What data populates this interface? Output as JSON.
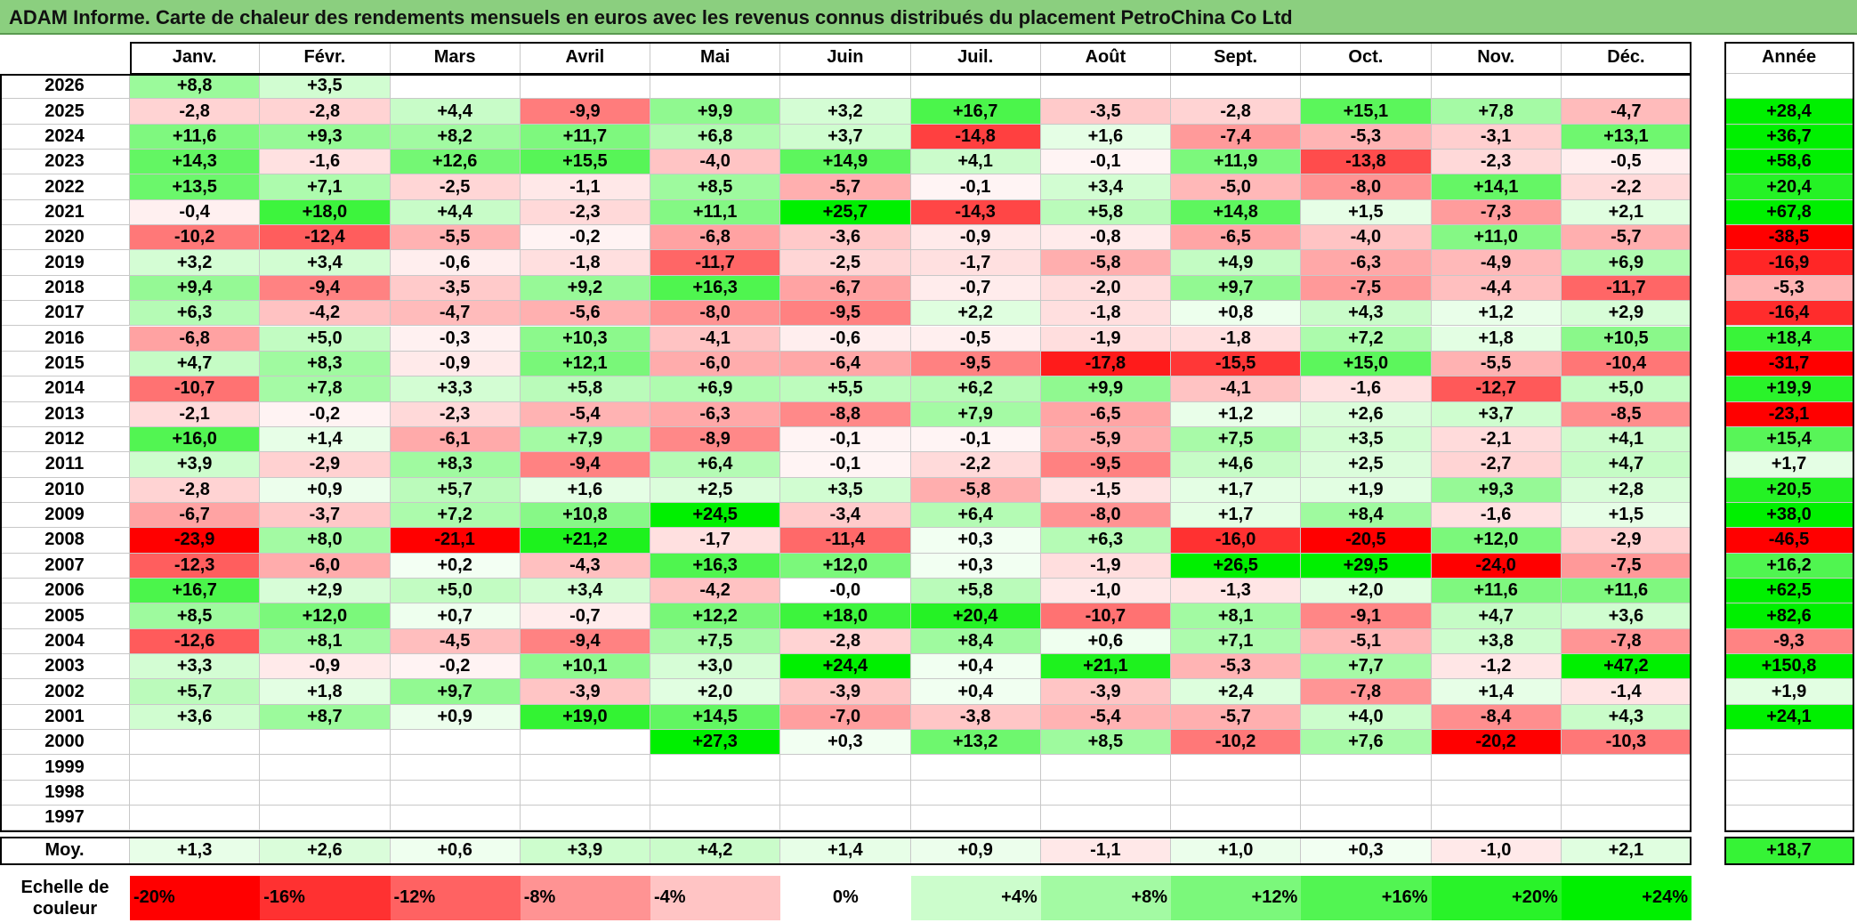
{
  "title": "ADAM Informe. Carte de chaleur des rendements mensuels en euros avec les revenus connus distribués du placement PetroChina Co Ltd",
  "chart_data": {
    "type": "heatmap",
    "months": [
      "Janv.",
      "Févr.",
      "Mars",
      "Avril",
      "Mai",
      "Juin",
      "Juil.",
      "Août",
      "Sept.",
      "Oct.",
      "Nov.",
      "Déc."
    ],
    "year_header": "Année",
    "rows": [
      {
        "year": "2026",
        "values": [
          "+8,8",
          "+3,5",
          "",
          "",
          "",
          "",
          "",
          "",
          "",
          "",
          "",
          ""
        ],
        "annual": ""
      },
      {
        "year": "2025",
        "values": [
          "-2,8",
          "-2,8",
          "+4,4",
          "-9,9",
          "+9,9",
          "+3,2",
          "+16,7",
          "-3,5",
          "-2,8",
          "+15,1",
          "+7,8",
          "-4,7"
        ],
        "annual": "+28,4"
      },
      {
        "year": "2024",
        "values": [
          "+11,6",
          "+9,3",
          "+8,2",
          "+11,7",
          "+6,8",
          "+3,7",
          "-14,8",
          "+1,6",
          "-7,4",
          "-5,3",
          "-3,1",
          "+13,1"
        ],
        "annual": "+36,7"
      },
      {
        "year": "2023",
        "values": [
          "+14,3",
          "-1,6",
          "+12,6",
          "+15,5",
          "-4,0",
          "+14,9",
          "+4,1",
          "-0,1",
          "+11,9",
          "-13,8",
          "-2,3",
          "-0,5"
        ],
        "annual": "+58,6"
      },
      {
        "year": "2022",
        "values": [
          "+13,5",
          "+7,1",
          "-2,5",
          "-1,1",
          "+8,5",
          "-5,7",
          "-0,1",
          "+3,4",
          "-5,0",
          "-8,0",
          "+14,1",
          "-2,2"
        ],
        "annual": "+20,4"
      },
      {
        "year": "2021",
        "values": [
          "-0,4",
          "+18,0",
          "+4,4",
          "-2,3",
          "+11,1",
          "+25,7",
          "-14,3",
          "+5,8",
          "+14,8",
          "+1,5",
          "-7,3",
          "+2,1"
        ],
        "annual": "+67,8"
      },
      {
        "year": "2020",
        "values": [
          "-10,2",
          "-12,4",
          "-5,5",
          "-0,2",
          "-6,8",
          "-3,6",
          "-0,9",
          "-0,8",
          "-6,5",
          "-4,0",
          "+11,0",
          "-5,7"
        ],
        "annual": "-38,5"
      },
      {
        "year": "2019",
        "values": [
          "+3,2",
          "+3,4",
          "-0,6",
          "-1,8",
          "-11,7",
          "-2,5",
          "-1,7",
          "-5,8",
          "+4,9",
          "-6,3",
          "-4,9",
          "+6,9"
        ],
        "annual": "-16,9"
      },
      {
        "year": "2018",
        "values": [
          "+9,4",
          "-9,4",
          "-3,5",
          "+9,2",
          "+16,3",
          "-6,7",
          "-0,7",
          "-2,0",
          "+9,7",
          "-7,5",
          "-4,4",
          "-11,7"
        ],
        "annual": "-5,3"
      },
      {
        "year": "2017",
        "values": [
          "+6,3",
          "-4,2",
          "-4,7",
          "-5,6",
          "-8,0",
          "-9,5",
          "+2,2",
          "-1,8",
          "+0,8",
          "+4,3",
          "+1,2",
          "+2,9"
        ],
        "annual": "-16,4"
      },
      {
        "year": "2016",
        "values": [
          "-6,8",
          "+5,0",
          "-0,3",
          "+10,3",
          "-4,1",
          "-0,6",
          "-0,5",
          "-1,9",
          "-1,8",
          "+7,2",
          "+1,8",
          "+10,5"
        ],
        "annual": "+18,4"
      },
      {
        "year": "2015",
        "values": [
          "+4,7",
          "+8,3",
          "-0,9",
          "+12,1",
          "-6,0",
          "-6,4",
          "-9,5",
          "-17,8",
          "-15,5",
          "+15,0",
          "-5,5",
          "-10,4"
        ],
        "annual": "-31,7"
      },
      {
        "year": "2014",
        "values": [
          "-10,7",
          "+7,8",
          "+3,3",
          "+5,8",
          "+6,9",
          "+5,5",
          "+6,2",
          "+9,9",
          "-4,1",
          "-1,6",
          "-12,7",
          "+5,0"
        ],
        "annual": "+19,9"
      },
      {
        "year": "2013",
        "values": [
          "-2,1",
          "-0,2",
          "-2,3",
          "-5,4",
          "-6,3",
          "-8,8",
          "+7,9",
          "-6,5",
          "+1,2",
          "+2,6",
          "+3,7",
          "-8,5"
        ],
        "annual": "-23,1"
      },
      {
        "year": "2012",
        "values": [
          "+16,0",
          "+1,4",
          "-6,1",
          "+7,9",
          "-8,9",
          "-0,1",
          "-0,1",
          "-5,9",
          "+7,5",
          "+3,5",
          "-2,1",
          "+4,1"
        ],
        "annual": "+15,4"
      },
      {
        "year": "2011",
        "values": [
          "+3,9",
          "-2,9",
          "+8,3",
          "-9,4",
          "+6,4",
          "-0,1",
          "-2,2",
          "-9,5",
          "+4,6",
          "+2,5",
          "-2,7",
          "+4,7"
        ],
        "annual": "+1,7"
      },
      {
        "year": "2010",
        "values": [
          "-2,8",
          "+0,9",
          "+5,7",
          "+1,6",
          "+2,5",
          "+3,5",
          "-5,8",
          "-1,5",
          "+1,7",
          "+1,9",
          "+9,3",
          "+2,8"
        ],
        "annual": "+20,5"
      },
      {
        "year": "2009",
        "values": [
          "-6,7",
          "-3,7",
          "+7,2",
          "+10,8",
          "+24,5",
          "-3,4",
          "+6,4",
          "-8,0",
          "+1,7",
          "+8,4",
          "-1,6",
          "+1,5"
        ],
        "annual": "+38,0"
      },
      {
        "year": "2008",
        "values": [
          "-23,9",
          "+8,0",
          "-21,1",
          "+21,2",
          "-1,7",
          "-11,4",
          "+0,3",
          "+6,3",
          "-16,0",
          "-20,5",
          "+12,0",
          "-2,9"
        ],
        "annual": "-46,5"
      },
      {
        "year": "2007",
        "values": [
          "-12,3",
          "-6,0",
          "+0,2",
          "-4,3",
          "+16,3",
          "+12,0",
          "+0,3",
          "-1,9",
          "+26,5",
          "+29,5",
          "-24,0",
          "-7,5"
        ],
        "annual": "+16,2"
      },
      {
        "year": "2006",
        "values": [
          "+16,7",
          "+2,9",
          "+5,0",
          "+3,4",
          "-4,2",
          "-0,0",
          "+5,8",
          "-1,0",
          "-1,3",
          "+2,0",
          "+11,6",
          "+11,6"
        ],
        "annual": "+62,5"
      },
      {
        "year": "2005",
        "values": [
          "+8,5",
          "+12,0",
          "+0,7",
          "-0,7",
          "+12,2",
          "+18,0",
          "+20,4",
          "-10,7",
          "+8,1",
          "-9,1",
          "+4,7",
          "+3,6"
        ],
        "annual": "+82,6"
      },
      {
        "year": "2004",
        "values": [
          "-12,6",
          "+8,1",
          "-4,5",
          "-9,4",
          "+7,5",
          "-2,8",
          "+8,4",
          "+0,6",
          "+7,1",
          "-5,1",
          "+3,8",
          "-7,8"
        ],
        "annual": "-9,3"
      },
      {
        "year": "2003",
        "values": [
          "+3,3",
          "-0,9",
          "-0,2",
          "+10,1",
          "+3,0",
          "+24,4",
          "+0,4",
          "+21,1",
          "-5,3",
          "+7,7",
          "-1,2",
          "+47,2"
        ],
        "annual": "+150,8"
      },
      {
        "year": "2002",
        "values": [
          "+5,7",
          "+1,8",
          "+9,7",
          "-3,9",
          "+2,0",
          "-3,9",
          "+0,4",
          "-3,9",
          "+2,4",
          "-7,8",
          "+1,4",
          "-1,4"
        ],
        "annual": "+1,9"
      },
      {
        "year": "2001",
        "values": [
          "+3,6",
          "+8,7",
          "+0,9",
          "+19,0",
          "+14,5",
          "-7,0",
          "-3,8",
          "-5,4",
          "-5,7",
          "+4,0",
          "-8,4",
          "+4,3"
        ],
        "annual": "+24,1"
      },
      {
        "year": "2000",
        "values": [
          "",
          "",
          "",
          "",
          "+27,3",
          "+0,3",
          "+13,2",
          "+8,5",
          "-10,2",
          "+7,6",
          "-20,2",
          "-10,3"
        ],
        "annual": ""
      },
      {
        "year": "1999",
        "values": [
          "",
          "",
          "",
          "",
          "",
          "",
          "",
          "",
          "",
          "",
          "",
          ""
        ],
        "annual": ""
      },
      {
        "year": "1998",
        "values": [
          "",
          "",
          "",
          "",
          "",
          "",
          "",
          "",
          "",
          "",
          "",
          ""
        ],
        "annual": ""
      },
      {
        "year": "1997",
        "values": [
          "",
          "",
          "",
          "",
          "",
          "",
          "",
          "",
          "",
          "",
          "",
          ""
        ],
        "annual": ""
      }
    ],
    "average": {
      "label": "Moy.",
      "values": [
        "+1,3",
        "+2,6",
        "+0,6",
        "+3,9",
        "+4,2",
        "+1,4",
        "+0,9",
        "-1,1",
        "+1,0",
        "+0,3",
        "-1,0",
        "+2,1"
      ],
      "annual": "+18,7"
    },
    "scale": {
      "label_line1": "Echelle de",
      "label_line2": "couleur",
      "items": [
        "-20%",
        "-16%",
        "-12%",
        "-8%",
        "-4%",
        "0%",
        "+4%",
        "+8%",
        "+12%",
        "+16%",
        "+20%",
        "+24%"
      ],
      "levels": [
        -20,
        -16,
        -12,
        -8,
        -4,
        0,
        4,
        8,
        12,
        16,
        20,
        24
      ]
    },
    "colors": {
      "negative": "#ff0000",
      "positive": "#00ee00",
      "neutral": "#ffffff",
      "title_bg": "#8bcf7f"
    }
  }
}
